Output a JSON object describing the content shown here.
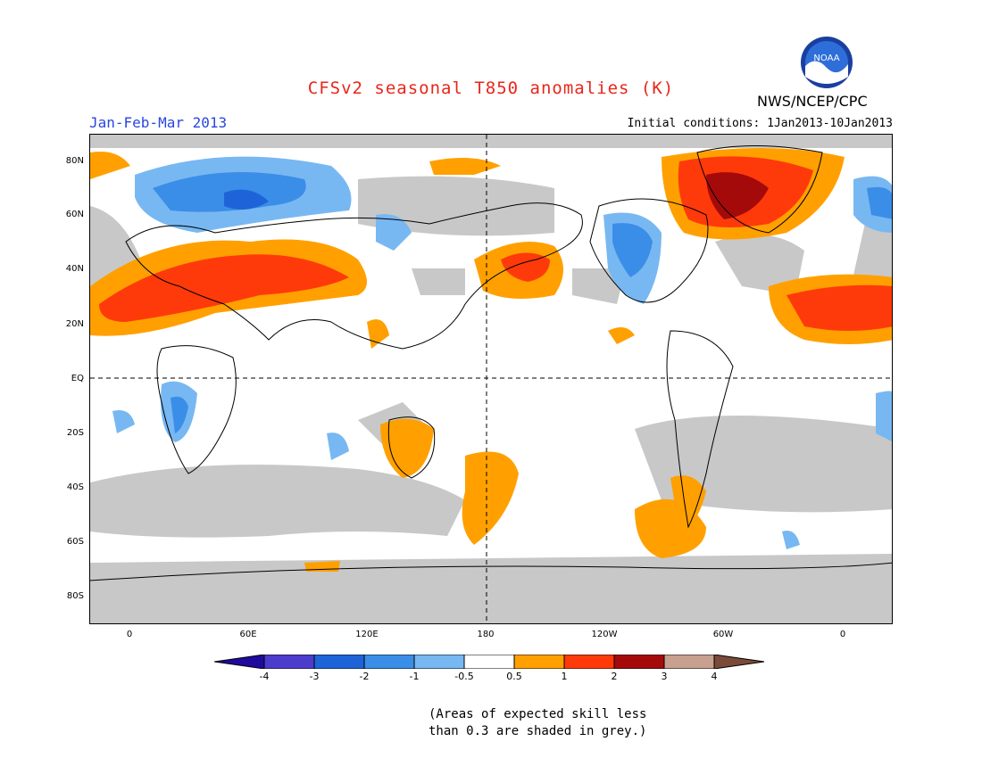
{
  "title": "CFSv2 seasonal T850 anomalies (K)",
  "agency": "NWS/NCEP/CPC",
  "logo_text": "NOAA",
  "season": "Jan-Feb-Mar 2013",
  "initial_conditions": "Initial conditions: 1Jan2013-10Jan2013",
  "lat_labels": [
    "80N",
    "60N",
    "40N",
    "20N",
    "EQ",
    "20S",
    "40S",
    "60S",
    "80S"
  ],
  "lon_labels": [
    "0",
    "60E",
    "120E",
    "180",
    "120W",
    "60W",
    "0"
  ],
  "colorbar": {
    "labels": [
      "-4",
      "-3",
      "-2",
      "-1",
      "-0.5",
      "0.5",
      "1",
      "2",
      "3",
      "4"
    ],
    "colors": [
      "#1f0a9e",
      "#4b3ccc",
      "#1e64d8",
      "#3a8ee8",
      "#78b8f2",
      "#ffffff",
      "#ffa000",
      "#ff3a0a",
      "#a50a0a",
      "#c8a090",
      "#7a4a3a"
    ]
  },
  "grey_skill_color": "#c8c8c8",
  "note_line1": "(Areas of expected skill less",
  "note_line2": "than 0.3 are shaded in grey.)"
}
